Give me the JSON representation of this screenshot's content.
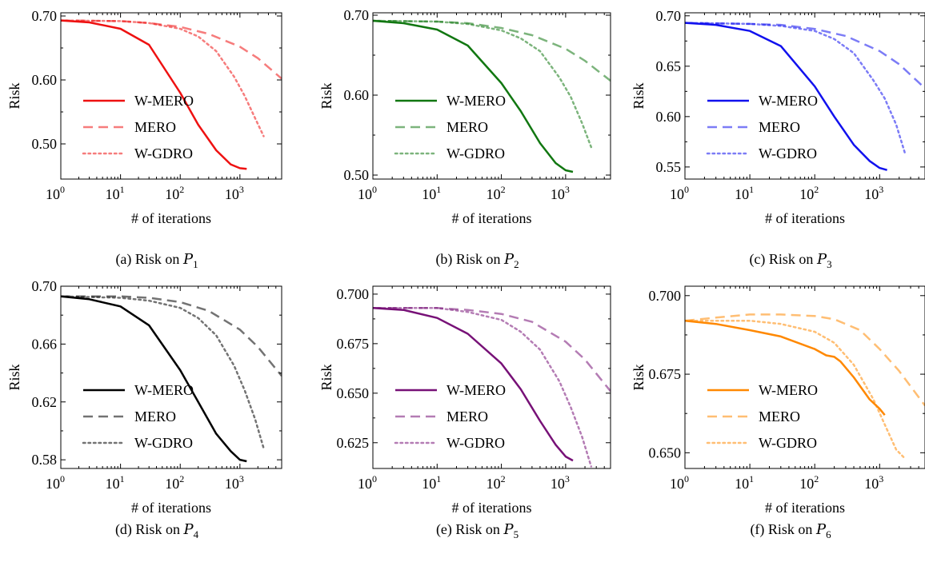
{
  "figure": {
    "caption_prefix": "Risk on",
    "subfigure_letters": [
      "(a)",
      "(b)",
      "(c)",
      "(d)",
      "(e)",
      "(f)"
    ]
  },
  "chart_data": [
    {
      "type": "line",
      "panel": "(a)",
      "caption": "Risk on P1",
      "caption_symbol": "P",
      "caption_subscript": "1",
      "xlabel": "# of iterations",
      "ylabel": "Risk",
      "xscale": "log",
      "xlim": [
        1,
        5000
      ],
      "ylim": [
        0.445,
        0.705
      ],
      "xticks": [
        {
          "base": "10",
          "exp": "0"
        },
        {
          "base": "10",
          "exp": "1"
        },
        {
          "base": "10",
          "exp": "2"
        },
        {
          "base": "10",
          "exp": "3"
        }
      ],
      "yticks": [
        "0.50",
        "0.60",
        "0.70"
      ],
      "ytick_values": [
        0.5,
        0.6,
        0.7
      ],
      "color": "#ee1111",
      "legend_position": "lower-left",
      "series": [
        {
          "name": "W-MERO",
          "style": "solid",
          "x": [
            1,
            3,
            10,
            30,
            100,
            200,
            400,
            700,
            1000,
            1300
          ],
          "y": [
            0.693,
            0.69,
            0.68,
            0.655,
            0.58,
            0.53,
            0.49,
            0.468,
            0.462,
            0.461
          ]
        },
        {
          "name": "MERO",
          "style": "dashed",
          "x": [
            1,
            10,
            30,
            100,
            300,
            1000,
            2000,
            5000
          ],
          "y": [
            0.693,
            0.692,
            0.689,
            0.683,
            0.672,
            0.652,
            0.634,
            0.602
          ]
        },
        {
          "name": "W-GDRO",
          "style": "dotted",
          "x": [
            1,
            10,
            30,
            100,
            200,
            400,
            800,
            1200,
            1800,
            2500
          ],
          "y": [
            0.693,
            0.692,
            0.689,
            0.68,
            0.668,
            0.645,
            0.605,
            0.575,
            0.54,
            0.512
          ]
        }
      ]
    },
    {
      "type": "line",
      "panel": "(b)",
      "caption": "Risk on P2",
      "caption_symbol": "P",
      "caption_subscript": "2",
      "xlabel": "# of iterations",
      "ylabel": "Risk",
      "xscale": "log",
      "xlim": [
        1,
        5000
      ],
      "ylim": [
        0.495,
        0.703
      ],
      "xticks": [
        {
          "base": "10",
          "exp": "0"
        },
        {
          "base": "10",
          "exp": "1"
        },
        {
          "base": "10",
          "exp": "2"
        },
        {
          "base": "10",
          "exp": "3"
        }
      ],
      "yticks": [
        "0.50",
        "0.60",
        "0.70"
      ],
      "ytick_values": [
        0.5,
        0.6,
        0.7
      ],
      "color": "#117711",
      "legend_position": "lower-left",
      "series": [
        {
          "name": "W-MERO",
          "style": "solid",
          "x": [
            1,
            3,
            10,
            30,
            100,
            200,
            400,
            700,
            1000,
            1300
          ],
          "y": [
            0.693,
            0.69,
            0.682,
            0.662,
            0.615,
            0.58,
            0.54,
            0.515,
            0.506,
            0.504
          ]
        },
        {
          "name": "MERO",
          "style": "dashed",
          "x": [
            1,
            10,
            30,
            100,
            300,
            1000,
            2000,
            5000
          ],
          "y": [
            0.693,
            0.692,
            0.69,
            0.684,
            0.675,
            0.658,
            0.643,
            0.618
          ]
        },
        {
          "name": "W-GDRO",
          "style": "dotted",
          "x": [
            1,
            10,
            30,
            100,
            200,
            400,
            800,
            1200,
            1800,
            2500
          ],
          "y": [
            0.693,
            0.692,
            0.689,
            0.681,
            0.671,
            0.655,
            0.622,
            0.598,
            0.565,
            0.535
          ]
        }
      ]
    },
    {
      "type": "line",
      "panel": "(c)",
      "caption": "Risk on P3",
      "caption_symbol": "P",
      "caption_subscript": "3",
      "xlabel": "# of iterations",
      "ylabel": "Risk",
      "xscale": "log",
      "xlim": [
        1,
        5000
      ],
      "ylim": [
        0.538,
        0.703
      ],
      "xticks": [
        {
          "base": "10",
          "exp": "0"
        },
        {
          "base": "10",
          "exp": "1"
        },
        {
          "base": "10",
          "exp": "2"
        },
        {
          "base": "10",
          "exp": "3"
        }
      ],
      "yticks": [
        "0.55",
        "0.60",
        "0.65",
        "0.70"
      ],
      "ytick_values": [
        0.55,
        0.6,
        0.65,
        0.7
      ],
      "color": "#1111ee",
      "legend_position": "lower-left",
      "series": [
        {
          "name": "W-MERO",
          "style": "solid",
          "x": [
            1,
            3,
            10,
            30,
            100,
            200,
            400,
            700,
            1000,
            1300
          ],
          "y": [
            0.693,
            0.691,
            0.685,
            0.67,
            0.63,
            0.6,
            0.572,
            0.556,
            0.549,
            0.547
          ]
        },
        {
          "name": "MERO",
          "style": "dashed",
          "x": [
            1,
            10,
            30,
            100,
            300,
            1000,
            2000,
            5000
          ],
          "y": [
            0.693,
            0.692,
            0.691,
            0.687,
            0.68,
            0.665,
            0.652,
            0.628
          ]
        },
        {
          "name": "W-GDRO",
          "style": "dotted",
          "x": [
            1,
            10,
            30,
            100,
            200,
            400,
            800,
            1200,
            1800,
            2500
          ],
          "y": [
            0.693,
            0.692,
            0.69,
            0.685,
            0.677,
            0.663,
            0.636,
            0.618,
            0.592,
            0.562
          ]
        }
      ]
    },
    {
      "type": "line",
      "panel": "(d)",
      "caption": "Risk on P4",
      "caption_symbol": "P",
      "caption_subscript": "4",
      "xlabel": "# of iterations",
      "ylabel": "Risk",
      "xscale": "log",
      "xlim": [
        1,
        5000
      ],
      "ylim": [
        0.574,
        0.7
      ],
      "xticks": [
        {
          "base": "10",
          "exp": "0"
        },
        {
          "base": "10",
          "exp": "1"
        },
        {
          "base": "10",
          "exp": "2"
        },
        {
          "base": "10",
          "exp": "3"
        }
      ],
      "yticks": [
        "0.58",
        "0.62",
        "0.66",
        "0.70"
      ],
      "ytick_values": [
        0.58,
        0.62,
        0.66,
        0.7
      ],
      "color": "#000000",
      "legend_position": "lower-left",
      "series": [
        {
          "name": "W-MERO",
          "style": "solid",
          "x": [
            1,
            3,
            10,
            30,
            100,
            200,
            400,
            700,
            1000,
            1300
          ],
          "y": [
            0.693,
            0.691,
            0.686,
            0.673,
            0.642,
            0.62,
            0.598,
            0.586,
            0.58,
            0.579
          ]
        },
        {
          "name": "MERO",
          "style": "dashed",
          "x": [
            1,
            10,
            30,
            100,
            300,
            1000,
            2000,
            5000
          ],
          "y": [
            0.693,
            0.693,
            0.692,
            0.689,
            0.683,
            0.67,
            0.658,
            0.638
          ]
        },
        {
          "name": "W-GDRO",
          "style": "dotted",
          "x": [
            1,
            10,
            30,
            100,
            200,
            400,
            800,
            1200,
            1800,
            2500
          ],
          "y": [
            0.693,
            0.692,
            0.69,
            0.685,
            0.678,
            0.666,
            0.645,
            0.628,
            0.608,
            0.588
          ]
        }
      ]
    },
    {
      "type": "line",
      "panel": "(e)",
      "caption": "Risk on P5",
      "caption_symbol": "P",
      "caption_subscript": "5",
      "xlabel": "# of iterations",
      "ylabel": "Risk",
      "xscale": "log",
      "xlim": [
        1,
        5000
      ],
      "ylim": [
        0.612,
        0.704
      ],
      "xticks": [
        {
          "base": "10",
          "exp": "0"
        },
        {
          "base": "10",
          "exp": "1"
        },
        {
          "base": "10",
          "exp": "2"
        },
        {
          "base": "10",
          "exp": "3"
        }
      ],
      "yticks": [
        "0.625",
        "0.650",
        "0.675",
        "0.700"
      ],
      "ytick_values": [
        0.625,
        0.65,
        0.675,
        0.7
      ],
      "color": "#771177",
      "legend_position": "lower-left",
      "series": [
        {
          "name": "W-MERO",
          "style": "solid",
          "x": [
            1,
            3,
            10,
            30,
            100,
            200,
            400,
            700,
            1000,
            1300
          ],
          "y": [
            0.693,
            0.692,
            0.688,
            0.68,
            0.665,
            0.652,
            0.636,
            0.624,
            0.618,
            0.616
          ]
        },
        {
          "name": "MERO",
          "style": "dashed",
          "x": [
            1,
            10,
            30,
            100,
            300,
            1000,
            2000,
            5000
          ],
          "y": [
            0.693,
            0.693,
            0.692,
            0.69,
            0.686,
            0.676,
            0.667,
            0.651
          ]
        },
        {
          "name": "W-GDRO",
          "style": "dotted",
          "x": [
            1,
            10,
            30,
            100,
            200,
            400,
            800,
            1200,
            1800,
            2500
          ],
          "y": [
            0.693,
            0.693,
            0.691,
            0.687,
            0.681,
            0.672,
            0.656,
            0.643,
            0.628,
            0.613
          ]
        }
      ]
    },
    {
      "type": "line",
      "panel": "(f)",
      "caption": "Risk on P6",
      "caption_symbol": "P",
      "caption_subscript": "6",
      "xlabel": "# of iterations",
      "ylabel": "Risk",
      "xscale": "log",
      "xlim": [
        1,
        5000
      ],
      "ylim": [
        0.645,
        0.703
      ],
      "xticks": [
        {
          "base": "10",
          "exp": "0"
        },
        {
          "base": "10",
          "exp": "1"
        },
        {
          "base": "10",
          "exp": "2"
        },
        {
          "base": "10",
          "exp": "3"
        }
      ],
      "yticks": [
        "0.650",
        "0.675",
        "0.700"
      ],
      "ytick_values": [
        0.65,
        0.675,
        0.7
      ],
      "color": "#ff8800",
      "legend_position": "lower-left",
      "series": [
        {
          "name": "W-MERO",
          "style": "solid",
          "x": [
            1,
            3,
            10,
            30,
            100,
            150,
            200,
            250,
            400,
            700,
            1000,
            1200
          ],
          "y": [
            0.692,
            0.691,
            0.689,
            0.687,
            0.683,
            0.681,
            0.6805,
            0.679,
            0.674,
            0.667,
            0.664,
            0.662
          ]
        },
        {
          "name": "MERO",
          "style": "dashed",
          "x": [
            1,
            3,
            10,
            30,
            100,
            200,
            500,
            1000,
            2000,
            5000
          ],
          "y": [
            0.692,
            0.693,
            0.694,
            0.694,
            0.6935,
            0.6925,
            0.689,
            0.683,
            0.676,
            0.665
          ]
        },
        {
          "name": "W-GDRO",
          "style": "dotted",
          "x": [
            1,
            10,
            30,
            100,
            200,
            400,
            800,
            1200,
            1800,
            2500
          ],
          "y": [
            0.692,
            0.692,
            0.691,
            0.6885,
            0.685,
            0.678,
            0.667,
            0.659,
            0.651,
            0.648
          ]
        }
      ]
    }
  ]
}
